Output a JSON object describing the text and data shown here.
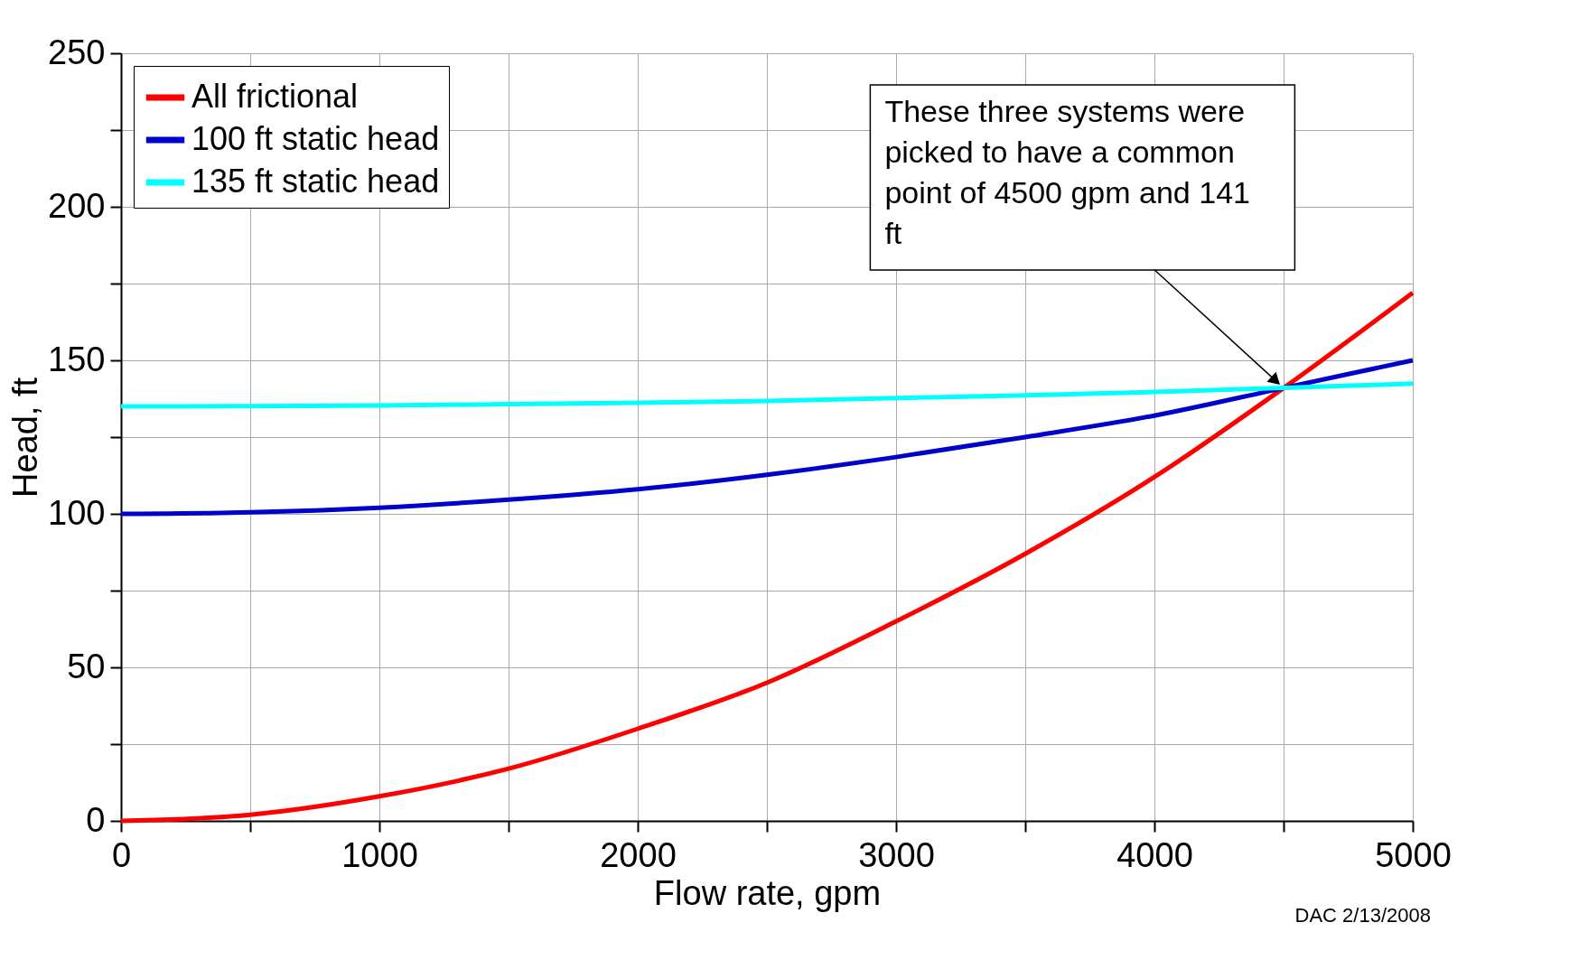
{
  "chart_data": {
    "type": "line",
    "xlabel": "Flow rate, gpm",
    "ylabel": "Head, ft",
    "x": [
      0,
      500,
      1000,
      1500,
      2000,
      2500,
      3000,
      3500,
      4000,
      4500,
      5000
    ],
    "series": [
      {
        "name": "All frictional",
        "color": "#ff0000",
        "values": [
          0,
          2,
          8,
          17,
          30,
          45,
          65,
          87,
          112,
          141,
          172
        ]
      },
      {
        "name": "100 ft static head",
        "color": "#0000cc",
        "values": [
          100,
          100.5,
          102,
          104.6,
          108,
          112.7,
          118.5,
          125,
          132,
          141,
          150
        ]
      },
      {
        "name": "135 ft static head",
        "color": "#00ffff",
        "values": [
          135,
          135.1,
          135.3,
          135.7,
          136.2,
          136.8,
          137.7,
          138.6,
          139.7,
          141,
          142.4
        ]
      }
    ],
    "xlim": [
      0,
      5000
    ],
    "ylim": [
      0,
      250
    ],
    "xticks": [
      0,
      {
        "value": 500,
        "label": null
      },
      1000,
      {
        "value": 1500,
        "label": null
      },
      2000,
      {
        "value": 2500,
        "label": null
      },
      3000,
      {
        "value": 3500,
        "label": null
      },
      4000,
      {
        "value": 4500,
        "label": null
      },
      5000
    ],
    "yticks": [
      0,
      {
        "value": 25,
        "label": null
      },
      50,
      {
        "value": 75,
        "label": null
      },
      100,
      {
        "value": 125,
        "label": null
      },
      150,
      {
        "value": 175,
        "label": null
      },
      200,
      {
        "value": 225,
        "label": null
      },
      250
    ],
    "grid": true,
    "legend": "top left",
    "marker": "none",
    "line_style": "solid",
    "annotations": [
      "These three systems were picked to have a common point of 4500 gpm and 141 ft",
      "DAC 2/13/2008"
    ]
  }
}
